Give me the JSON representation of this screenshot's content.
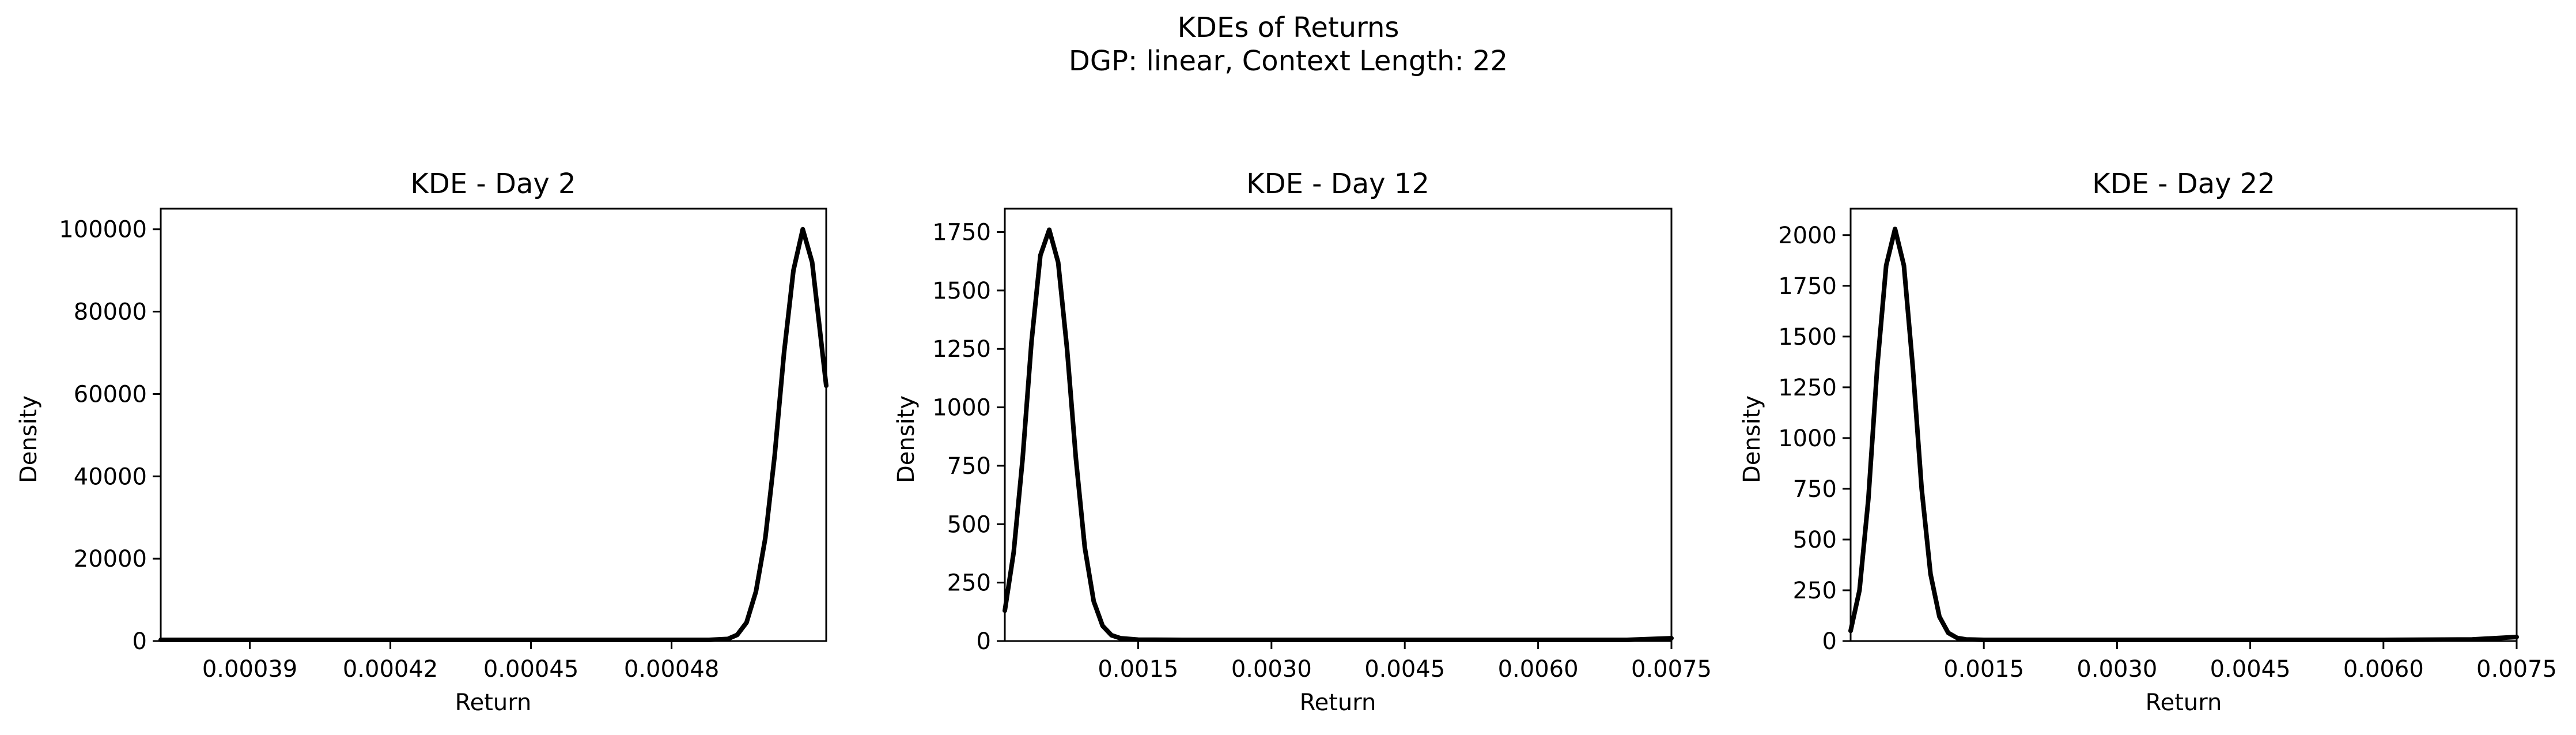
{
  "figure": {
    "title_line1": "KDEs of Returns",
    "title_line2": "DGP: linear, Context Length: 22"
  },
  "chart_data": [
    {
      "type": "line",
      "title": "KDE - Day 2",
      "xlabel": "Return",
      "ylabel": "Density",
      "xlim": [
        0.000371,
        0.000513
      ],
      "ylim": [
        0,
        105000
      ],
      "xticks": [
        0.00039,
        0.00042,
        0.00045,
        0.00048
      ],
      "xtick_labels": [
        "0.00039",
        "0.00042",
        "0.00045",
        "0.00048"
      ],
      "yticks": [
        0,
        20000,
        40000,
        60000,
        80000,
        100000
      ],
      "ytick_labels": [
        "0",
        "20000",
        "40000",
        "60000",
        "80000",
        "100000"
      ],
      "grid": false,
      "series": [
        {
          "color": "#000000",
          "x": [
            0.000371,
            0.00039,
            0.00042,
            0.00045,
            0.00048,
            0.000488,
            0.000492,
            0.000494,
            0.000496,
            0.000498,
            0.0005,
            0.000502,
            0.000504,
            0.000506,
            0.000508,
            0.00051,
            0.000513
          ],
          "y": [
            0,
            0,
            0,
            0,
            0,
            100,
            500,
            1500,
            4500,
            12000,
            25000,
            45000,
            70000,
            90000,
            100000,
            92000,
            62000
          ]
        }
      ]
    },
    {
      "type": "line",
      "title": "KDE - Day 12",
      "xlabel": "Return",
      "ylabel": "Density",
      "xlim": [
        0,
        0.0075
      ],
      "ylim": [
        0,
        1850
      ],
      "xticks": [
        0.0015,
        0.003,
        0.0045,
        0.006,
        0.0075
      ],
      "xtick_labels": [
        "0.0015",
        "0.0030",
        "0.0045",
        "0.0060",
        "0.0075"
      ],
      "yticks": [
        0,
        250,
        500,
        750,
        1000,
        1250,
        1500,
        1750
      ],
      "ytick_labels": [
        "0",
        "250",
        "500",
        "750",
        "1000",
        "1250",
        "1500",
        "1750"
      ],
      "grid": false,
      "series": [
        {
          "color": "#000000",
          "x": [
            0,
            0.0001,
            0.0002,
            0.0003,
            0.0004,
            0.0005,
            0.0006,
            0.0007,
            0.0008,
            0.0009,
            0.001,
            0.0011,
            0.0012,
            0.0013,
            0.0015,
            0.002,
            0.003,
            0.0045,
            0.006,
            0.007,
            0.0075
          ],
          "y": [
            130,
            380,
            780,
            1280,
            1650,
            1760,
            1620,
            1250,
            780,
            400,
            170,
            65,
            25,
            12,
            6,
            4,
            3,
            2,
            2,
            4,
            12
          ]
        }
      ]
    },
    {
      "type": "line",
      "title": "KDE - Day 22",
      "xlabel": "Return",
      "ylabel": "Density",
      "xlim": [
        0,
        0.0075
      ],
      "ylim": [
        0,
        2130
      ],
      "xticks": [
        0.0015,
        0.003,
        0.0045,
        0.006,
        0.0075
      ],
      "xtick_labels": [
        "0.0015",
        "0.0030",
        "0.0045",
        "0.0060",
        "0.0075"
      ],
      "yticks": [
        0,
        250,
        500,
        750,
        1000,
        1250,
        1500,
        1750,
        2000
      ],
      "ytick_labels": [
        "0",
        "250",
        "500",
        "750",
        "1000",
        "1250",
        "1500",
        "1750",
        "2000"
      ],
      "grid": false,
      "series": [
        {
          "color": "#000000",
          "x": [
            0,
            0.0001,
            0.0002,
            0.0003,
            0.0004,
            0.0005,
            0.0006,
            0.0007,
            0.0008,
            0.0009,
            0.001,
            0.0011,
            0.0012,
            0.0013,
            0.0015,
            0.002,
            0.003,
            0.0045,
            0.006,
            0.007,
            0.0075
          ],
          "y": [
            50,
            250,
            700,
            1350,
            1850,
            2030,
            1850,
            1350,
            750,
            330,
            120,
            40,
            15,
            8,
            4,
            3,
            2,
            2,
            3,
            8,
            20
          ]
        }
      ]
    }
  ]
}
